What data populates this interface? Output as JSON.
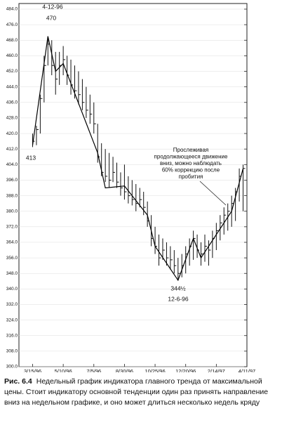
{
  "chart_data": {
    "type": "ohlc",
    "caption_label": "Рис. 6.4",
    "caption_text": "Недельный график индикатора главного тренда от максимальной цены. Стоит индикатору основной тенденции один раз принять направление вниз на недельном графике, и оно может длиться несколько недель кряду",
    "x": [
      "3/15/96",
      "3/22/96",
      "3/29/96",
      "4/5/96",
      "4/12/96",
      "4/19/96",
      "4/26/96",
      "5/3/96",
      "5/10/96",
      "5/17/96",
      "5/24/96",
      "5/31/96",
      "6/7/96",
      "6/14/96",
      "6/21/96",
      "6/28/96",
      "7/5/96",
      "7/12/96",
      "7/19/96",
      "7/26/96",
      "8/2/96",
      "8/9/96",
      "8/16/96",
      "8/23/96",
      "8/30/96",
      "9/6/96",
      "9/13/96",
      "9/20/96",
      "9/27/96",
      "10/4/96",
      "10/11/96",
      "10/18/96",
      "10/25/96",
      "11/1/96",
      "11/8/96",
      "11/15/96",
      "11/22/96",
      "11/29/96",
      "12/6/96",
      "12/13/96",
      "12/20/96",
      "12/27/96",
      "1/3/97",
      "1/10/97",
      "1/17/97",
      "1/24/97",
      "1/31/97",
      "2/7/97",
      "2/14/97",
      "2/21/97",
      "2/28/97",
      "3/7/97",
      "3/14/97",
      "3/21/97",
      "3/28/97",
      "4/4/97"
    ],
    "high": [
      420,
      424,
      440,
      460,
      470,
      468,
      462,
      462,
      465,
      460,
      458,
      455,
      452,
      448,
      444,
      440,
      436,
      425,
      415,
      412,
      410,
      408,
      405,
      400,
      404,
      398,
      396,
      394,
      392,
      390,
      385,
      378,
      372,
      368,
      366,
      364,
      362,
      360,
      356,
      358,
      362,
      366,
      370,
      368,
      364,
      368,
      365,
      370,
      374,
      378,
      382,
      384,
      388,
      392,
      402,
      404
    ],
    "low": [
      413,
      414,
      420,
      436,
      455,
      450,
      440,
      445,
      450,
      445,
      440,
      438,
      435,
      432,
      428,
      425,
      420,
      405,
      398,
      395,
      392,
      395,
      392,
      388,
      386,
      384,
      383,
      380,
      382,
      378,
      372,
      362,
      358,
      352,
      355,
      352,
      350,
      348,
      344.5,
      346,
      348,
      352,
      355,
      356,
      352,
      354,
      352,
      356,
      360,
      365,
      368,
      370,
      372,
      375,
      385,
      380
    ],
    "close": [
      416,
      422,
      438,
      455,
      466,
      455,
      448,
      455,
      458,
      450,
      445,
      442,
      440,
      436,
      432,
      430,
      425,
      408,
      400,
      398,
      396,
      400,
      395,
      392,
      390,
      388,
      386,
      384,
      386,
      382,
      375,
      366,
      362,
      356,
      360,
      356,
      355,
      352,
      348,
      352,
      358,
      362,
      366,
      360,
      358,
      362,
      360,
      366,
      370,
      374,
      378,
      380,
      384,
      390,
      398,
      402
    ],
    "color": "#111",
    "trend": {
      "x": [
        "3/15/96",
        "4/12/96",
        "4/26/96",
        "5/10/96",
        "7/12/96",
        "7/26/96",
        "8/30/96",
        "10/11/96",
        "10/25/96",
        "12/6/96",
        "1/3/97",
        "1/17/97",
        "3/14/97",
        "4/4/97"
      ],
      "values": [
        414,
        470,
        452,
        456,
        410,
        392,
        393,
        378,
        362,
        344.5,
        366,
        356,
        380,
        402
      ]
    },
    "xlim": [
      "2/19/96",
      "4/11/97"
    ],
    "xticks": [
      "3/15/96",
      "5/10/96",
      "7/5/96",
      "8/30/96",
      "10/25/96",
      "12/20/96",
      "2/14/97",
      "4/11/97"
    ],
    "ylim": [
      300,
      487
    ],
    "yticks": [
      {
        "value": 300,
        "label": "300.0"
      },
      {
        "value": 308,
        "label": "308.0"
      },
      {
        "value": 316,
        "label": "316.0"
      },
      {
        "value": 324,
        "label": "324.0"
      },
      {
        "value": 332,
        "label": "332.0"
      },
      {
        "value": 340,
        "label": "340.0"
      },
      {
        "value": 348,
        "label": "348.0"
      },
      {
        "value": 356,
        "label": "356.0"
      },
      {
        "value": 364,
        "label": "364.0"
      },
      {
        "value": 372,
        "label": "372.0"
      },
      {
        "value": 380,
        "label": "380.0"
      },
      {
        "value": 388,
        "label": "388.0"
      },
      {
        "value": 396,
        "label": "396.0"
      },
      {
        "value": 404,
        "label": "404.0"
      },
      {
        "value": 412,
        "label": "412.0"
      },
      {
        "value": 420,
        "label": "420.0"
      },
      {
        "value": 428,
        "label": "428.0"
      },
      {
        "value": 436,
        "label": "436.0"
      },
      {
        "value": 444,
        "label": "444.0"
      },
      {
        "value": 452,
        "label": "452.0"
      },
      {
        "value": 460,
        "label": "460.0"
      },
      {
        "value": 468,
        "label": "468.0"
      },
      {
        "value": 476,
        "label": "476.0"
      },
      {
        "value": 484,
        "label": "484.0"
      }
    ],
    "annotations": [
      "4-12-96",
      "470",
      "413",
      "344½",
      "12-6-96"
    ],
    "note": [
      "Прослеживая",
      "продолжающееся движение",
      "вниз, можно наблюдать",
      "60% коррекцию после",
      "пробития"
    ]
  }
}
